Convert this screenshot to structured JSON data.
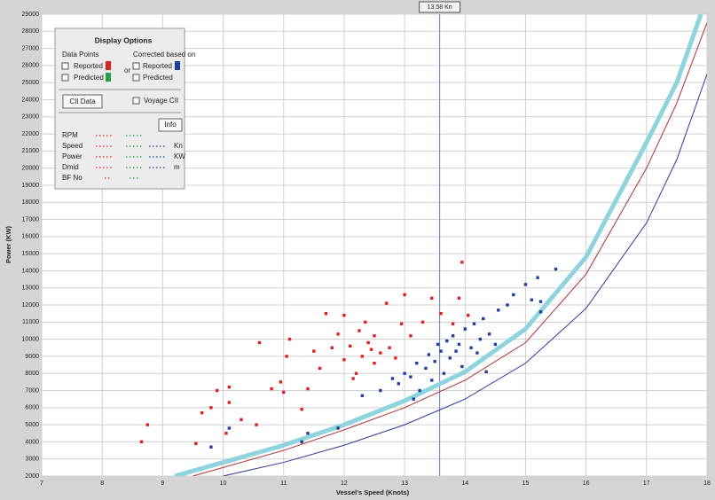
{
  "chart_data": {
    "type": "scatter",
    "x_label": "Vessel's Speed (Knots)",
    "y_label": "Power (KW)",
    "cursor": {
      "value": 13.58,
      "label": "13.58 Kn"
    },
    "xlim": [
      7,
      18
    ],
    "ylim": [
      2000,
      29000
    ],
    "xticks": [
      7,
      8,
      9,
      10,
      11,
      12,
      13,
      14,
      15,
      16,
      17,
      18
    ],
    "yticks": [
      2000,
      3000,
      4000,
      5000,
      6000,
      7000,
      8000,
      9000,
      10000,
      11000,
      12000,
      13000,
      14000,
      15000,
      16000,
      17000,
      18000,
      19000,
      20000,
      21000,
      22000,
      23000,
      24000,
      25000,
      26000,
      27000,
      28000,
      29000
    ],
    "grid": true,
    "series": [
      {
        "kind": "line",
        "color": "#8fd3dc",
        "line_width": 5,
        "x": [
          9.2,
          10,
          11,
          12,
          13,
          14,
          15,
          16,
          17,
          17.5,
          17.9
        ],
        "values": [
          2000,
          2800,
          3800,
          5000,
          6400,
          8100,
          10600,
          14800,
          21500,
          25000,
          29000
        ]
      },
      {
        "kind": "line",
        "color": "#b03030",
        "line_width": 1,
        "x": [
          9.5,
          10,
          11,
          12,
          13,
          14,
          15,
          16,
          17,
          17.5,
          18
        ],
        "values": [
          2000,
          2500,
          3500,
          4700,
          6000,
          7600,
          9800,
          13800,
          20000,
          23800,
          28500
        ]
      },
      {
        "kind": "line",
        "color": "#2a3a9a",
        "line_width": 1,
        "x": [
          10,
          11,
          12,
          13,
          14,
          15,
          16,
          17,
          17.5,
          18
        ],
        "values": [
          2000,
          2800,
          3800,
          5000,
          6500,
          8600,
          11800,
          16800,
          20500,
          25500
        ]
      },
      {
        "kind": "points",
        "color": "#e02020",
        "x": [
          8.65,
          8.75,
          9.55,
          9.65,
          9.8,
          9.9,
          10.05,
          10.1,
          10.1,
          10.3,
          10.55,
          10.6,
          10.8,
          10.95,
          11,
          11.05,
          11.1,
          11.3,
          11.4,
          11.5,
          11.6,
          11.7,
          11.8,
          11.9,
          12,
          12,
          12.1,
          12.2,
          12.25,
          12.3,
          12.35,
          12.4,
          12.5,
          12.5,
          12.6,
          12.7,
          12.75,
          12.85,
          12.95,
          13,
          13.1,
          13.3,
          13.45,
          13.6,
          13.8,
          13.95,
          13.9,
          14.05,
          12.15,
          12.45
        ],
        "values": [
          4000,
          5000,
          3900,
          5700,
          6000,
          7000,
          4500,
          6300,
          7200,
          5300,
          5000,
          9800,
          7100,
          7500,
          6900,
          9000,
          10000,
          5900,
          7100,
          9300,
          8300,
          11500,
          9500,
          10300,
          8800,
          11400,
          9600,
          8000,
          10500,
          9000,
          11000,
          9800,
          8600,
          10200,
          9200,
          12100,
          9500,
          8900,
          10900,
          12600,
          10200,
          11000,
          12400,
          11500,
          10900,
          14500,
          12400,
          11400,
          7700,
          9400
        ]
      },
      {
        "kind": "points",
        "color": "#1f3f9f",
        "x": [
          9.8,
          10.1,
          11.3,
          11.4,
          11.9,
          12.3,
          12.6,
          12.8,
          12.9,
          13.0,
          13.1,
          13.2,
          13.25,
          13.35,
          13.4,
          13.5,
          13.55,
          13.6,
          13.65,
          13.7,
          13.75,
          13.8,
          13.85,
          13.9,
          13.95,
          14.0,
          14.1,
          14.15,
          14.2,
          14.25,
          14.3,
          14.4,
          14.5,
          14.55,
          14.7,
          14.8,
          15.0,
          15.2,
          15.25,
          15.25,
          15.5,
          15.1,
          14.35,
          13.15,
          13.45
        ],
        "values": [
          3700,
          4800,
          4000,
          4500,
          4800,
          6700,
          7000,
          7700,
          7400,
          8000,
          7800,
          8600,
          7000,
          8300,
          9100,
          8700,
          9700,
          9300,
          8000,
          9900,
          8900,
          10200,
          9300,
          9700,
          8400,
          10600,
          9500,
          10900,
          9200,
          10000,
          11200,
          10300,
          9700,
          11700,
          12000,
          12600,
          13200,
          13600,
          12200,
          11600,
          14100,
          12300,
          8100,
          6500,
          7600
        ]
      }
    ]
  },
  "panel": {
    "title": "Display Options",
    "data_points": "Data Points",
    "reported": "Reported",
    "predicted": "Predicted",
    "or": "or",
    "corrected": "Corrected based on",
    "reported2": "Reported",
    "predicted2": "Predicted",
    "cii_button": "CII Data",
    "voyage_cii": "Voyage CII",
    "info": "Info",
    "rows": [
      "RPM",
      "Speed",
      "Power",
      "Dmid",
      "BF No"
    ],
    "units": [
      "Kn",
      "KW",
      "m"
    ]
  }
}
